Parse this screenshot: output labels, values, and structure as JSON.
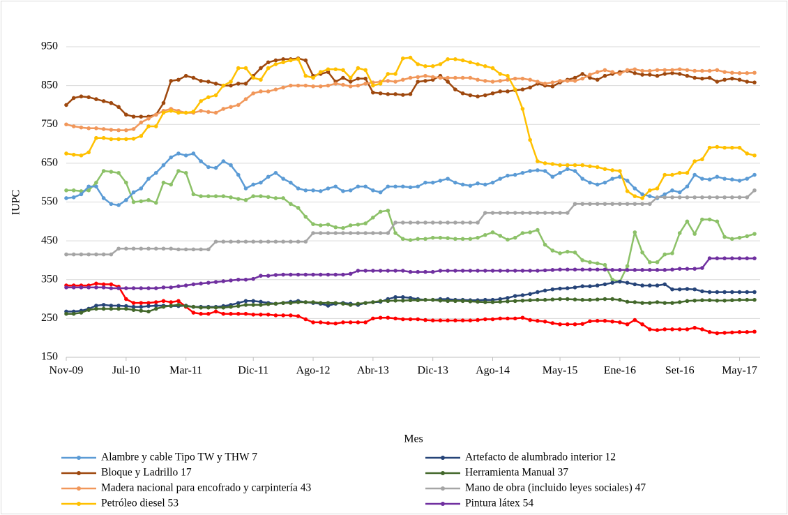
{
  "chart_data": {
    "type": "line",
    "y_label": "IUPC",
    "x_label": "Mes",
    "ylim": [
      150,
      950
    ],
    "yticks": [
      150,
      250,
      350,
      450,
      550,
      650,
      750,
      850,
      950
    ],
    "grid": true,
    "legend": "bottom",
    "categories": [
      "Nov-09",
      null,
      null,
      null,
      null,
      null,
      null,
      null,
      "Jul-10",
      null,
      null,
      null,
      null,
      null,
      null,
      null,
      "Mar-11",
      null,
      null,
      null,
      null,
      null,
      null,
      null,
      null,
      "Dic-11",
      null,
      null,
      null,
      null,
      null,
      null,
      null,
      "Ago-12",
      null,
      null,
      null,
      null,
      null,
      null,
      null,
      "Abr-13",
      null,
      null,
      null,
      null,
      null,
      null,
      null,
      "Dic-13",
      null,
      null,
      null,
      null,
      null,
      null,
      null,
      "Ago-14",
      null,
      null,
      null,
      null,
      null,
      null,
      null,
      null,
      "May-15",
      null,
      null,
      null,
      null,
      null,
      null,
      null,
      "Ene-16",
      null,
      null,
      null,
      null,
      null,
      null,
      null,
      "Set-16",
      null,
      null,
      null,
      null,
      null,
      null,
      null,
      "May-17",
      null,
      null
    ],
    "series": [
      {
        "name": "Alambre y cable Tipo TW y THW 7",
        "color": "#5b9bd5",
        "values": [
          560,
          562,
          570,
          590,
          590,
          560,
          545,
          542,
          555,
          575,
          585,
          610,
          625,
          645,
          665,
          675,
          670,
          675,
          655,
          640,
          638,
          655,
          645,
          620,
          585,
          595,
          600,
          615,
          625,
          610,
          600,
          585,
          580,
          580,
          578,
          585,
          590,
          578,
          580,
          590,
          590,
          580,
          575,
          590,
          590,
          590,
          588,
          590,
          600,
          600,
          605,
          610,
          600,
          595,
          592,
          598,
          595,
          600,
          610,
          618,
          620,
          625,
          630,
          632,
          630,
          615,
          625,
          635,
          630,
          610,
          600,
          595,
          600,
          610,
          615,
          605,
          585,
          570,
          565,
          560,
          570,
          580,
          575,
          590,
          620,
          610,
          608,
          615,
          610,
          608,
          605,
          610,
          620
        ]
      },
      {
        "name": "Artefacto de alumbrado interior 12",
        "color": "#264478",
        "values": [
          268,
          268,
          270,
          275,
          283,
          285,
          283,
          283,
          282,
          280,
          280,
          282,
          283,
          283,
          282,
          282,
          283,
          280,
          280,
          280,
          280,
          282,
          285,
          290,
          295,
          295,
          293,
          290,
          288,
          290,
          293,
          295,
          292,
          290,
          288,
          283,
          288,
          290,
          288,
          285,
          290,
          292,
          293,
          300,
          305,
          305,
          303,
          300,
          298,
          298,
          300,
          300,
          298,
          298,
          297,
          297,
          298,
          298,
          300,
          303,
          308,
          310,
          313,
          318,
          322,
          325,
          327,
          328,
          330,
          333,
          333,
          335,
          338,
          342,
          345,
          342,
          338,
          335,
          335,
          335,
          338,
          325,
          325,
          326,
          325,
          320,
          318,
          318,
          318,
          318,
          318,
          318,
          318
        ]
      },
      {
        "name": "Bloque y Ladrillo 17",
        "color": "#9e480e",
        "values": [
          800,
          818,
          822,
          820,
          815,
          810,
          805,
          795,
          775,
          770,
          770,
          770,
          775,
          805,
          862,
          865,
          875,
          870,
          862,
          860,
          855,
          850,
          850,
          855,
          855,
          875,
          895,
          910,
          915,
          918,
          918,
          920,
          915,
          875,
          880,
          885,
          860,
          870,
          860,
          868,
          868,
          832,
          830,
          828,
          828,
          826,
          828,
          860,
          862,
          865,
          875,
          860,
          840,
          830,
          825,
          822,
          825,
          830,
          835,
          835,
          838,
          840,
          845,
          855,
          850,
          848,
          858,
          865,
          870,
          880,
          870,
          865,
          875,
          880,
          885,
          888,
          882,
          878,
          878,
          875,
          880,
          882,
          880,
          875,
          870,
          868,
          870,
          860,
          865,
          868,
          865,
          860,
          858
        ]
      },
      {
        "name": "Herramienta Manual 37",
        "color": "#43682b",
        "values": [
          262,
          262,
          265,
          272,
          275,
          275,
          275,
          275,
          275,
          272,
          270,
          268,
          275,
          280,
          283,
          285,
          282,
          280,
          278,
          278,
          278,
          278,
          280,
          282,
          285,
          285,
          285,
          287,
          288,
          290,
          290,
          292,
          292,
          292,
          290,
          290,
          290,
          288,
          285,
          288,
          290,
          292,
          295,
          295,
          296,
          296,
          297,
          297,
          298,
          298,
          296,
          295,
          295,
          295,
          294,
          293,
          292,
          292,
          293,
          294,
          295,
          296,
          297,
          298,
          298,
          299,
          300,
          300,
          299,
          298,
          298,
          299,
          300,
          300,
          298,
          293,
          292,
          290,
          290,
          292,
          290,
          290,
          292,
          295,
          296,
          297,
          297,
          296,
          296,
          297,
          298,
          298,
          298
        ]
      },
      {
        "name": "Madera nacional para encofrado y carpintería 43",
        "color": "#f1975a",
        "values": [
          750,
          745,
          742,
          740,
          740,
          738,
          736,
          735,
          735,
          738,
          755,
          765,
          775,
          785,
          790,
          785,
          780,
          780,
          785,
          782,
          780,
          790,
          795,
          800,
          815,
          830,
          835,
          835,
          840,
          845,
          850,
          850,
          850,
          848,
          848,
          850,
          855,
          852,
          848,
          850,
          855,
          858,
          860,
          862,
          860,
          865,
          870,
          872,
          875,
          872,
          870,
          870,
          870,
          870,
          870,
          865,
          862,
          860,
          862,
          865,
          868,
          868,
          865,
          860,
          855,
          858,
          862,
          862,
          862,
          868,
          878,
          885,
          890,
          885,
          880,
          890,
          892,
          888,
          888,
          890,
          890,
          890,
          892,
          890,
          888,
          888,
          888,
          890,
          885,
          883,
          882,
          882,
          883
        ]
      },
      {
        "name": "Mano de obra (incluido leyes sociales) 47",
        "color": "#a5a5a5",
        "values": [
          415,
          415,
          415,
          415,
          415,
          415,
          415,
          430,
          430,
          430,
          430,
          430,
          430,
          430,
          430,
          428,
          428,
          428,
          428,
          428,
          448,
          448,
          448,
          448,
          448,
          448,
          448,
          448,
          448,
          448,
          448,
          448,
          448,
          470,
          470,
          470,
          470,
          470,
          470,
          470,
          470,
          470,
          470,
          470,
          497,
          497,
          497,
          497,
          497,
          497,
          497,
          497,
          497,
          497,
          497,
          497,
          522,
          522,
          522,
          522,
          522,
          522,
          522,
          522,
          522,
          522,
          522,
          522,
          545,
          545,
          545,
          545,
          545,
          545,
          545,
          545,
          545,
          545,
          545,
          562,
          562,
          562,
          562,
          562,
          562,
          562,
          562,
          562,
          562,
          562,
          562,
          562,
          580
        ]
      },
      {
        "name": "Petróleo diesel 53",
        "color": "#ffc000",
        "values": [
          675,
          672,
          670,
          678,
          715,
          715,
          712,
          712,
          712,
          713,
          720,
          745,
          745,
          780,
          785,
          780,
          780,
          783,
          810,
          820,
          825,
          850,
          860,
          895,
          895,
          870,
          865,
          895,
          905,
          910,
          915,
          918,
          875,
          870,
          885,
          892,
          892,
          890,
          870,
          895,
          890,
          850,
          855,
          880,
          880,
          920,
          922,
          905,
          900,
          900,
          905,
          918,
          918,
          915,
          910,
          905,
          900,
          895,
          880,
          875,
          840,
          790,
          710,
          655,
          650,
          648,
          645,
          645,
          645,
          645,
          642,
          640,
          635,
          632,
          630,
          578,
          565,
          560,
          580,
          585,
          620,
          620,
          625,
          625,
          655,
          660,
          690,
          692,
          690,
          690,
          690,
          675,
          670
        ]
      },
      {
        "name": "Pintura látex 54",
        "color": "#7030a0",
        "values": [
          330,
          330,
          330,
          330,
          330,
          330,
          328,
          328,
          328,
          328,
          328,
          328,
          328,
          330,
          330,
          333,
          335,
          338,
          340,
          342,
          344,
          346,
          348,
          350,
          350,
          352,
          360,
          360,
          362,
          363,
          363,
          363,
          363,
          363,
          363,
          363,
          363,
          363,
          365,
          373,
          373,
          373,
          373,
          373,
          373,
          373,
          370,
          370,
          370,
          370,
          373,
          373,
          373,
          373,
          373,
          373,
          373,
          373,
          373,
          373,
          373,
          373,
          373,
          373,
          374,
          375,
          376,
          376,
          376,
          376,
          376,
          376,
          376,
          375,
          375,
          375,
          375,
          375,
          375,
          375,
          375,
          376,
          378,
          378,
          378,
          380,
          405,
          405,
          405,
          405,
          405,
          405,
          405
        ]
      },
      {
        "color": "#8cc168",
        "values": [
          580,
          580,
          578,
          580,
          600,
          630,
          628,
          625,
          600,
          550,
          552,
          555,
          548,
          600,
          595,
          630,
          625,
          570,
          565,
          565,
          565,
          565,
          562,
          558,
          555,
          565,
          565,
          563,
          560,
          560,
          545,
          535,
          512,
          493,
          490,
          492,
          485,
          483,
          490,
          492,
          495,
          510,
          525,
          528,
          470,
          455,
          452,
          455,
          455,
          458,
          458,
          457,
          455,
          455,
          455,
          458,
          465,
          472,
          463,
          453,
          458,
          470,
          472,
          478,
          440,
          425,
          418,
          422,
          420,
          400,
          395,
          392,
          388,
          350,
          345,
          385,
          472,
          420,
          395,
          395,
          415,
          418,
          470,
          500,
          468,
          505,
          505,
          500,
          460,
          455,
          458,
          462,
          468
        ]
      },
      {
        "color": "#ff0000",
        "values": [
          335,
          335,
          335,
          335,
          340,
          338,
          338,
          332,
          300,
          290,
          290,
          290,
          292,
          295,
          292,
          295,
          280,
          265,
          262,
          262,
          268,
          262,
          262,
          262,
          262,
          260,
          260,
          260,
          258,
          258,
          258,
          256,
          248,
          240,
          240,
          238,
          237,
          240,
          240,
          240,
          240,
          250,
          252,
          252,
          250,
          248,
          248,
          248,
          246,
          245,
          245,
          245,
          245,
          245,
          245,
          246,
          248,
          248,
          250,
          250,
          250,
          252,
          246,
          244,
          242,
          238,
          235,
          235,
          235,
          236,
          243,
          244,
          244,
          242,
          240,
          235,
          246,
          235,
          222,
          220,
          222,
          222,
          222,
          222,
          226,
          222,
          215,
          212,
          213,
          214,
          215,
          215,
          216
        ]
      }
    ]
  }
}
